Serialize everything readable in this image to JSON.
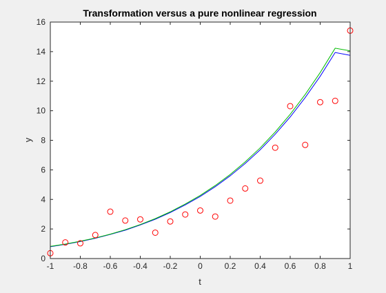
{
  "chart_data": {
    "type": "scatter",
    "title": "Transformation versus a pure nonlinear regression",
    "xlabel": "t",
    "ylabel": "y",
    "xlim": [
      -1,
      1
    ],
    "ylim": [
      0,
      16
    ],
    "xticks": [
      -1,
      -0.8,
      -0.6,
      -0.4,
      -0.2,
      0,
      0.2,
      0.4,
      0.6,
      0.8,
      1
    ],
    "xtick_labels": [
      "-1",
      "-0.8",
      "-0.6",
      "-0.4",
      "-0.2",
      "0",
      "0.2",
      "0.4",
      "0.6",
      "0.8",
      "1"
    ],
    "yticks": [
      0,
      2,
      4,
      6,
      8,
      10,
      12,
      14,
      16
    ],
    "ytick_labels": [
      "0",
      "2",
      "4",
      "6",
      "8",
      "10",
      "12",
      "14",
      "16"
    ],
    "grid": false,
    "legend": "none",
    "points": {
      "marker": "open-circle",
      "color": "#ff0000",
      "x": [
        -1,
        -0.9,
        -0.8,
        -0.7,
        -0.6,
        -0.5,
        -0.4,
        -0.3,
        -0.2,
        -0.1,
        0,
        0.1,
        0.2,
        0.3,
        0.4,
        0.5,
        0.6,
        0.7,
        0.8,
        0.9,
        1
      ],
      "y": [
        0.36,
        1.09,
        1.03,
        1.59,
        3.17,
        2.57,
        2.65,
        1.75,
        2.51,
        2.98,
        3.25,
        2.84,
        3.92,
        4.74,
        5.27,
        7.5,
        10.31,
        7.69,
        10.58,
        10.67,
        15.42
      ]
    },
    "curves": [
      {
        "color": "#0000ff",
        "x": [
          -1,
          -0.9,
          -0.8,
          -0.7,
          -0.6,
          -0.5,
          -0.4,
          -0.3,
          -0.2,
          -0.1,
          0,
          0.1,
          0.2,
          0.3,
          0.4,
          0.5,
          0.6,
          0.7,
          0.8,
          0.9,
          1
        ],
        "y": [
          0.8,
          0.96,
          1.15,
          1.37,
          1.63,
          1.92,
          2.27,
          2.66,
          3.11,
          3.63,
          4.2,
          4.86,
          5.6,
          6.43,
          7.36,
          8.41,
          9.58,
          10.89,
          12.33,
          13.94,
          13.75
        ]
      },
      {
        "color": "#00bb00",
        "x": [
          -1,
          -0.9,
          -0.8,
          -0.7,
          -0.6,
          -0.5,
          -0.4,
          -0.3,
          -0.2,
          -0.1,
          0,
          0.1,
          0.2,
          0.3,
          0.4,
          0.5,
          0.6,
          0.7,
          0.8,
          0.9,
          1
        ],
        "y": [
          0.82,
          0.98,
          1.17,
          1.39,
          1.65,
          1.95,
          2.3,
          2.7,
          3.16,
          3.69,
          4.27,
          4.94,
          5.69,
          6.54,
          7.49,
          8.56,
          9.76,
          11.1,
          12.58,
          14.23,
          14.05
        ]
      }
    ]
  }
}
